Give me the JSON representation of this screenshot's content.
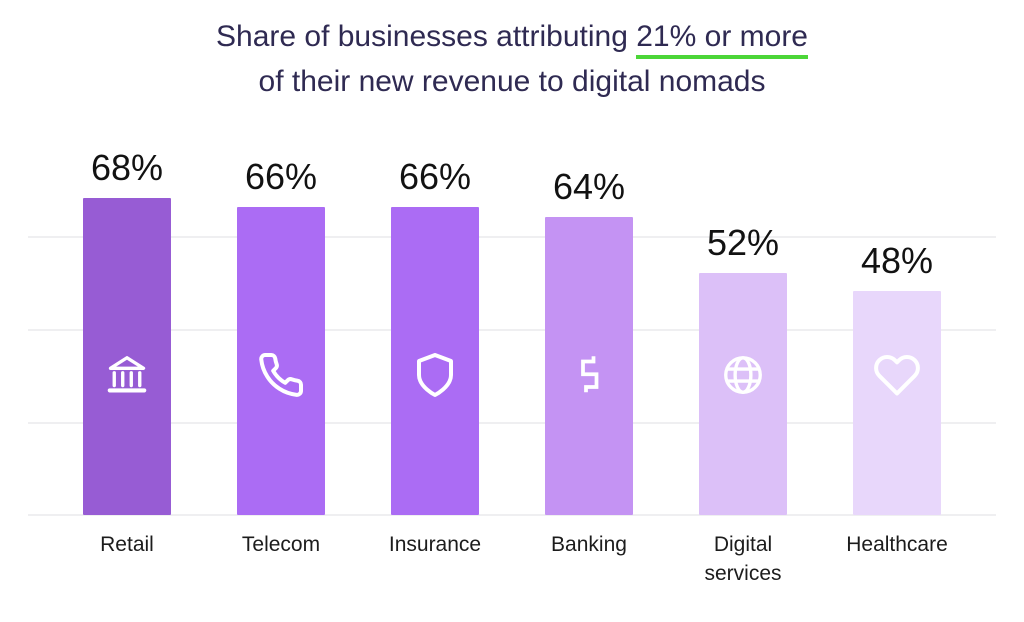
{
  "title": {
    "line1_prefix": "Share of businesses attributing ",
    "line1_underlined": "21% or more",
    "line2": "of their new revenue to digital nomads"
  },
  "chart_data": {
    "type": "bar",
    "title": "Share of businesses attributing 21% or more of their new revenue to digital nomads",
    "categories": [
      "Retail",
      "Telecom",
      "Insurance",
      "Banking",
      "Digital services",
      "Healthcare"
    ],
    "values": [
      68,
      66,
      66,
      64,
      52,
      48
    ],
    "value_labels": [
      "68%",
      "66%",
      "66%",
      "64%",
      "52%",
      "48%"
    ],
    "icons": [
      "bank-icon",
      "phone-icon",
      "shield-icon",
      "dollar-icon",
      "globe-icon",
      "heart-icon"
    ],
    "bar_colors": [
      "#975cd4",
      "#ab6cf4",
      "#ab6cf4",
      "#c493f3",
      "#dcc0f8",
      "#e8d7fb"
    ],
    "icon_color": "#ffffff",
    "title_color": "#2f2a52",
    "underline_color": "#4cd638",
    "gridline_color": "#efeff1",
    "xlabel": "",
    "ylabel": "",
    "ylim": [
      0,
      73
    ],
    "grid": "horizontal-faint",
    "legend": "none"
  }
}
